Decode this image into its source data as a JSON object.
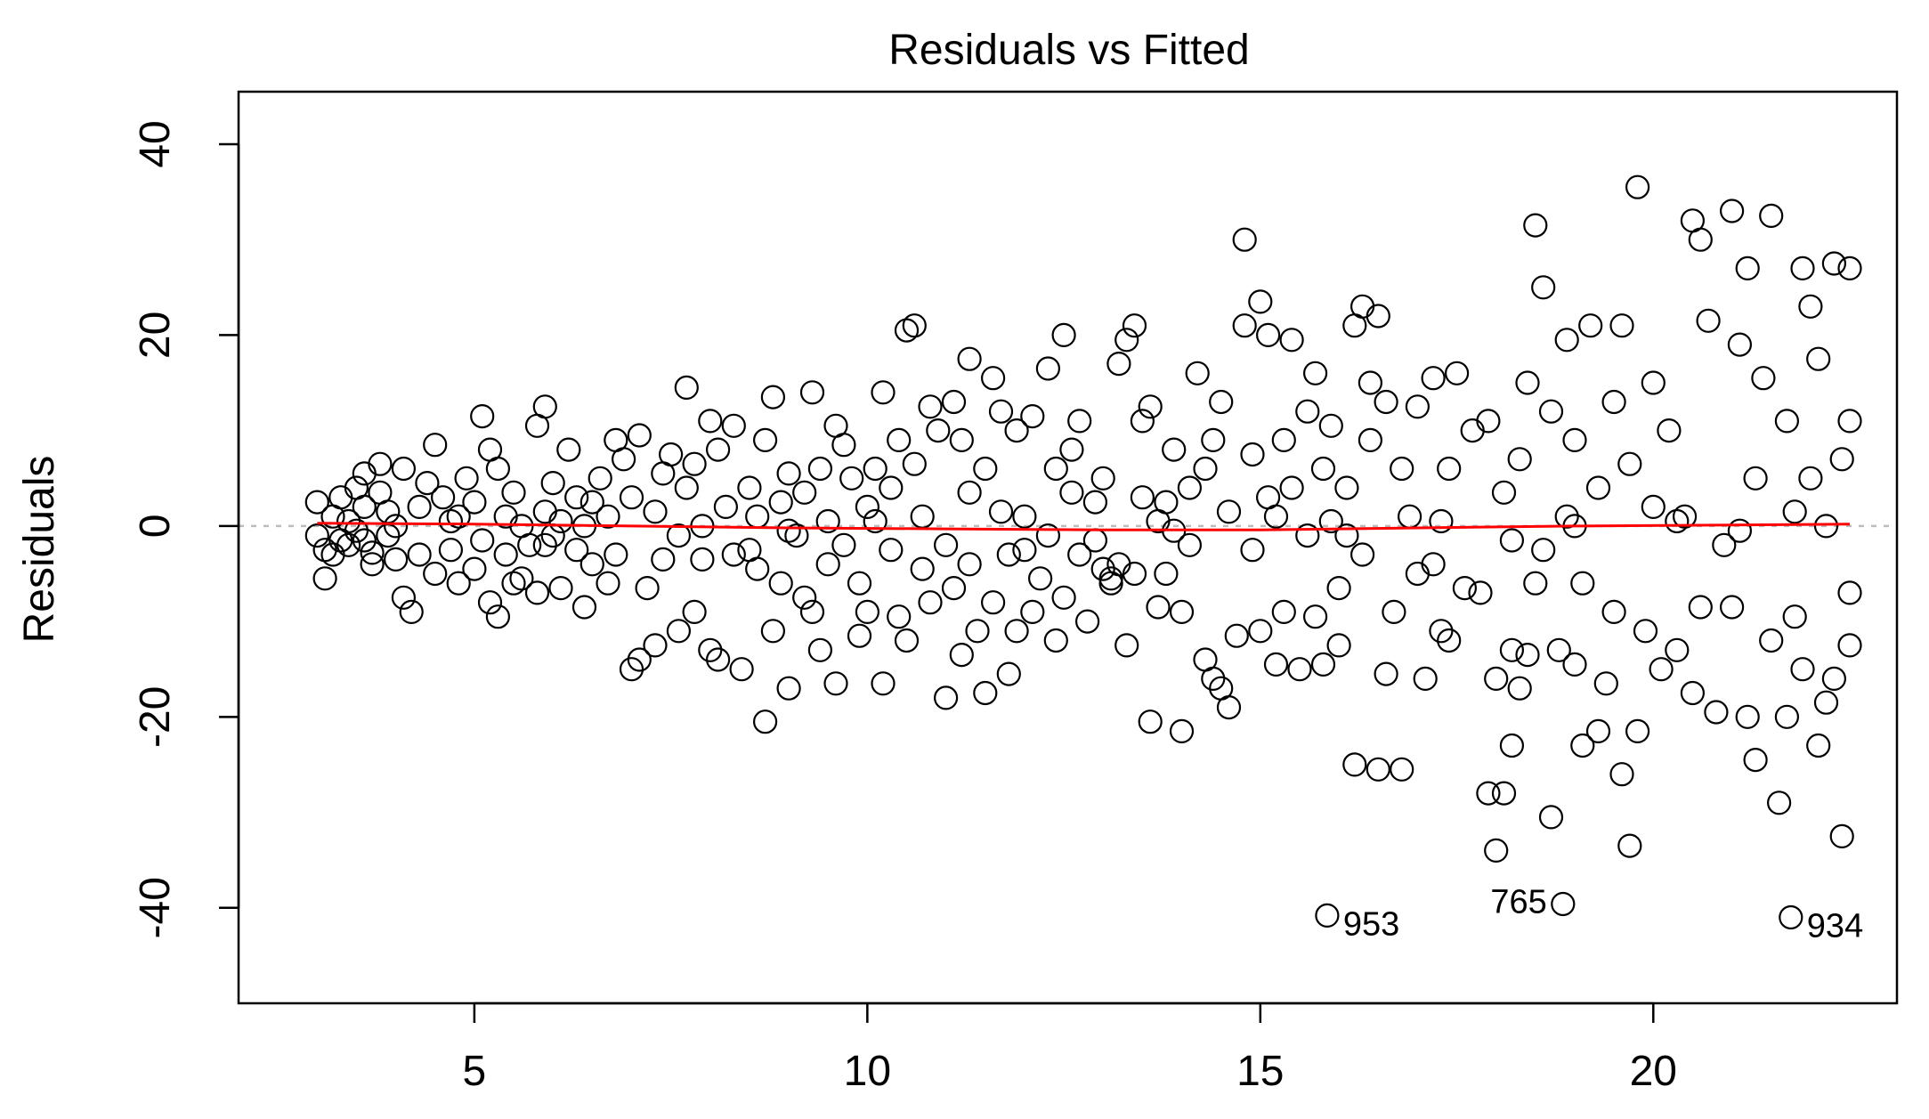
{
  "chart_data": {
    "type": "scatter",
    "title": "Residuals vs Fitted",
    "xlabel": "",
    "ylabel": "Residuals",
    "xlim": [
      2.0,
      23.1
    ],
    "ylim": [
      -50.0,
      45.5
    ],
    "x_ticks": [
      5,
      10,
      15,
      20
    ],
    "y_ticks": [
      -40,
      -20,
      0,
      20,
      40
    ],
    "grid": false,
    "colors": {
      "points": "#000000",
      "smooth": "#ff0000",
      "zero_line": "#bbbbbb"
    },
    "zero_reference": 0,
    "smooth_line": {
      "x": [
        3.0,
        5,
        7,
        9,
        11,
        13,
        15,
        17,
        19,
        21,
        22.5
      ],
      "y": [
        0.3,
        0.2,
        0.0,
        -0.2,
        -0.3,
        -0.4,
        -0.4,
        -0.2,
        0.0,
        0.1,
        0.2
      ]
    },
    "labeled_points": [
      {
        "label": "953",
        "x": 15.85,
        "y": -40.8
      },
      {
        "label": "765",
        "x": 18.85,
        "y": -39.6
      },
      {
        "label": "934",
        "x": 21.75,
        "y": -41.0
      }
    ],
    "points": [
      [
        3.0,
        2.5
      ],
      [
        3.0,
        -1.0
      ],
      [
        3.1,
        -2.5
      ],
      [
        3.1,
        -5.5
      ],
      [
        3.2,
        1.0
      ],
      [
        3.2,
        -3.0
      ],
      [
        3.3,
        3.0
      ],
      [
        3.3,
        -1.5
      ],
      [
        3.4,
        0.5
      ],
      [
        3.4,
        -2.0
      ],
      [
        3.5,
        4.0
      ],
      [
        3.5,
        -0.5
      ],
      [
        3.6,
        5.5
      ],
      [
        3.6,
        2.0
      ],
      [
        3.7,
        -4.0
      ],
      [
        3.7,
        -2.8
      ],
      [
        3.8,
        6.5
      ],
      [
        3.8,
        3.5
      ],
      [
        3.9,
        -1.0
      ],
      [
        3.9,
        1.5
      ],
      [
        4.0,
        0.0
      ],
      [
        4.0,
        -3.5
      ],
      [
        4.1,
        -7.5
      ],
      [
        4.1,
        6.0
      ],
      [
        4.2,
        -9.0
      ],
      [
        4.3,
        2.0
      ],
      [
        4.4,
        4.5
      ],
      [
        4.5,
        -5.0
      ],
      [
        4.5,
        8.5
      ],
      [
        4.6,
        3.0
      ],
      [
        4.7,
        -2.5
      ],
      [
        4.7,
        0.5
      ],
      [
        4.8,
        -6.0
      ],
      [
        4.8,
        1.0
      ],
      [
        4.9,
        5.0
      ],
      [
        5.0,
        -4.5
      ],
      [
        5.0,
        2.5
      ],
      [
        5.1,
        -1.5
      ],
      [
        5.1,
        11.5
      ],
      [
        5.2,
        8.0
      ],
      [
        5.2,
        -8.0
      ],
      [
        5.3,
        -9.5
      ],
      [
        5.3,
        6.0
      ],
      [
        5.4,
        1.0
      ],
      [
        5.4,
        -3.0
      ],
      [
        5.5,
        -6.0
      ],
      [
        5.5,
        3.5
      ],
      [
        5.6,
        -5.5
      ],
      [
        5.6,
        0.0
      ],
      [
        5.7,
        -2.0
      ],
      [
        5.8,
        10.5
      ],
      [
        5.8,
        -7.0
      ],
      [
        5.9,
        12.5
      ],
      [
        5.9,
        1.5
      ],
      [
        6.0,
        -1.0
      ],
      [
        6.0,
        4.5
      ],
      [
        6.1,
        -6.5
      ],
      [
        6.1,
        0.5
      ],
      [
        6.2,
        8.0
      ],
      [
        6.3,
        -2.5
      ],
      [
        6.3,
        3.0
      ],
      [
        6.4,
        -8.5
      ],
      [
        6.5,
        2.5
      ],
      [
        6.5,
        -4.0
      ],
      [
        6.6,
        5.0
      ],
      [
        6.7,
        -6.0
      ],
      [
        6.7,
        1.0
      ],
      [
        6.8,
        9.0
      ],
      [
        6.8,
        -3.0
      ],
      [
        6.9,
        7.0
      ],
      [
        7.0,
        -15.0
      ],
      [
        7.0,
        3.0
      ],
      [
        7.1,
        -14.0
      ],
      [
        7.1,
        9.5
      ],
      [
        7.2,
        -6.5
      ],
      [
        7.3,
        1.5
      ],
      [
        7.3,
        -12.5
      ],
      [
        7.4,
        5.5
      ],
      [
        7.4,
        -3.5
      ],
      [
        7.5,
        7.5
      ],
      [
        7.6,
        -1.0
      ],
      [
        7.6,
        -11.0
      ],
      [
        7.7,
        14.5
      ],
      [
        7.7,
        4.0
      ],
      [
        7.8,
        -9.0
      ],
      [
        7.8,
        6.5
      ],
      [
        7.9,
        0.0
      ],
      [
        8.0,
        11.0
      ],
      [
        8.0,
        -13.0
      ],
      [
        8.1,
        8.0
      ],
      [
        8.1,
        -14.0
      ],
      [
        8.2,
        2.0
      ],
      [
        8.3,
        -3.0
      ],
      [
        8.3,
        10.5
      ],
      [
        8.4,
        -15.0
      ],
      [
        8.5,
        4.0
      ],
      [
        8.5,
        -2.5
      ],
      [
        8.6,
        -4.5
      ],
      [
        8.6,
        1.0
      ],
      [
        8.7,
        9.0
      ],
      [
        8.7,
        -20.5
      ],
      [
        8.8,
        13.5
      ],
      [
        8.8,
        -11.0
      ],
      [
        8.9,
        2.5
      ],
      [
        8.9,
        -6.0
      ],
      [
        9.0,
        5.5
      ],
      [
        9.0,
        -17.0
      ],
      [
        9.1,
        -1.0
      ],
      [
        9.2,
        3.5
      ],
      [
        9.2,
        -7.5
      ],
      [
        9.3,
        14.0
      ],
      [
        9.3,
        -9.0
      ],
      [
        9.4,
        6.0
      ],
      [
        9.4,
        -13.0
      ],
      [
        9.5,
        0.5
      ],
      [
        9.5,
        -4.0
      ],
      [
        9.6,
        10.5
      ],
      [
        9.6,
        -16.5
      ],
      [
        9.7,
        8.5
      ],
      [
        9.7,
        -2.0
      ],
      [
        9.8,
        5.0
      ],
      [
        9.9,
        -11.5
      ],
      [
        9.9,
        -6.0
      ],
      [
        10.0,
        -9.0
      ],
      [
        10.0,
        2.0
      ],
      [
        10.1,
        6.0
      ],
      [
        10.2,
        -16.5
      ],
      [
        10.2,
        14.0
      ],
      [
        10.3,
        -2.5
      ],
      [
        10.3,
        4.0
      ],
      [
        10.4,
        -9.5
      ],
      [
        10.4,
        9.0
      ],
      [
        10.5,
        20.5
      ],
      [
        10.5,
        -12.0
      ],
      [
        10.6,
        21.0
      ],
      [
        10.6,
        6.5
      ],
      [
        10.7,
        -4.5
      ],
      [
        10.7,
        1.0
      ],
      [
        10.8,
        12.5
      ],
      [
        10.8,
        -8.0
      ],
      [
        10.9,
        10.0
      ],
      [
        11.0,
        -18.0
      ],
      [
        11.0,
        -2.0
      ],
      [
        11.1,
        13.0
      ],
      [
        11.1,
        -6.5
      ],
      [
        11.2,
        9.0
      ],
      [
        11.2,
        -13.5
      ],
      [
        11.3,
        17.5
      ],
      [
        11.3,
        3.5
      ],
      [
        11.4,
        -11.0
      ],
      [
        11.5,
        6.0
      ],
      [
        11.5,
        -17.5
      ],
      [
        11.6,
        15.5
      ],
      [
        11.6,
        -8.0
      ],
      [
        11.7,
        1.5
      ],
      [
        11.7,
        12.0
      ],
      [
        11.8,
        -15.5
      ],
      [
        11.8,
        -3.0
      ],
      [
        11.9,
        10.0
      ],
      [
        11.9,
        -11.0
      ],
      [
        12.0,
        1.0
      ],
      [
        12.1,
        -9.0
      ],
      [
        12.1,
        11.5
      ],
      [
        12.2,
        -5.5
      ],
      [
        12.3,
        -1.0
      ],
      [
        12.3,
        16.5
      ],
      [
        12.4,
        6.0
      ],
      [
        12.4,
        -12.0
      ],
      [
        12.5,
        20.0
      ],
      [
        12.5,
        -7.5
      ],
      [
        12.6,
        3.5
      ],
      [
        12.6,
        8.0
      ],
      [
        12.7,
        -3.0
      ],
      [
        12.7,
        11.0
      ],
      [
        12.8,
        -10.0
      ],
      [
        12.9,
        2.5
      ],
      [
        12.9,
        -1.5
      ],
      [
        13.0,
        5.0
      ],
      [
        13.0,
        -4.5
      ],
      [
        13.1,
        -5.5
      ],
      [
        13.1,
        -6.0
      ],
      [
        13.2,
        17.0
      ],
      [
        13.2,
        -4.0
      ],
      [
        13.3,
        19.5
      ],
      [
        13.3,
        -12.5
      ],
      [
        13.4,
        21.0
      ],
      [
        13.4,
        -5.0
      ],
      [
        13.5,
        11.0
      ],
      [
        13.5,
        3.0
      ],
      [
        13.6,
        -20.5
      ],
      [
        13.6,
        12.5
      ],
      [
        13.7,
        -8.5
      ],
      [
        13.7,
        0.5
      ],
      [
        13.8,
        2.5
      ],
      [
        13.8,
        -5.0
      ],
      [
        13.9,
        8.0
      ],
      [
        14.0,
        -21.5
      ],
      [
        14.0,
        -9.0
      ],
      [
        14.1,
        4.0
      ],
      [
        14.1,
        -2.0
      ],
      [
        14.2,
        16.0
      ],
      [
        14.3,
        -14.0
      ],
      [
        14.3,
        6.0
      ],
      [
        14.4,
        -16.0
      ],
      [
        14.4,
        9.0
      ],
      [
        14.5,
        -17.0
      ],
      [
        14.5,
        13.0
      ],
      [
        14.6,
        -19.0
      ],
      [
        14.6,
        1.5
      ],
      [
        14.7,
        -11.5
      ],
      [
        14.8,
        30.0
      ],
      [
        14.8,
        21.0
      ],
      [
        14.9,
        -2.5
      ],
      [
        14.9,
        7.5
      ],
      [
        15.0,
        23.5
      ],
      [
        15.0,
        -11.0
      ],
      [
        15.1,
        20.0
      ],
      [
        15.1,
        3.0
      ],
      [
        15.2,
        -14.5
      ],
      [
        15.3,
        9.0
      ],
      [
        15.3,
        -9.0
      ],
      [
        15.4,
        19.5
      ],
      [
        15.4,
        4.0
      ],
      [
        15.5,
        -15.0
      ],
      [
        15.6,
        -1.0
      ],
      [
        15.6,
        12.0
      ],
      [
        15.7,
        16.0
      ],
      [
        15.7,
        -9.5
      ],
      [
        15.8,
        6.0
      ],
      [
        15.8,
        -14.5
      ],
      [
        15.9,
        10.5
      ],
      [
        15.9,
        0.5
      ],
      [
        16.0,
        -6.5
      ],
      [
        16.0,
        -12.5
      ],
      [
        16.1,
        4.0
      ],
      [
        16.2,
        -25.0
      ],
      [
        16.2,
        21.0
      ],
      [
        16.3,
        23.0
      ],
      [
        16.3,
        -3.0
      ],
      [
        16.4,
        15.0
      ],
      [
        16.4,
        9.0
      ],
      [
        16.5,
        -25.5
      ],
      [
        16.5,
        22.0
      ],
      [
        16.6,
        -15.5
      ],
      [
        16.6,
        13.0
      ],
      [
        16.7,
        -9.0
      ],
      [
        16.8,
        -25.5
      ],
      [
        16.8,
        6.0
      ],
      [
        16.9,
        1.0
      ],
      [
        17.0,
        -5.0
      ],
      [
        17.0,
        12.5
      ],
      [
        17.1,
        -16.0
      ],
      [
        17.2,
        15.5
      ],
      [
        17.2,
        -4.0
      ],
      [
        17.3,
        -11.0
      ],
      [
        17.4,
        6.0
      ],
      [
        17.4,
        -12.0
      ],
      [
        17.5,
        16.0
      ],
      [
        17.6,
        -6.5
      ],
      [
        17.7,
        10.0
      ],
      [
        17.8,
        -7.0
      ],
      [
        17.9,
        -28.0
      ],
      [
        17.9,
        11.0
      ],
      [
        18.0,
        -34.0
      ],
      [
        18.0,
        -16.0
      ],
      [
        18.1,
        -28.0
      ],
      [
        18.1,
        3.5
      ],
      [
        18.2,
        -23.0
      ],
      [
        18.2,
        -13.0
      ],
      [
        18.3,
        -17.0
      ],
      [
        18.3,
        7.0
      ],
      [
        18.4,
        -13.5
      ],
      [
        18.4,
        15.0
      ],
      [
        18.5,
        31.5
      ],
      [
        18.5,
        -6.0
      ],
      [
        18.6,
        25.0
      ],
      [
        18.6,
        -2.5
      ],
      [
        18.7,
        -30.5
      ],
      [
        18.7,
        12.0
      ],
      [
        18.8,
        -13.0
      ],
      [
        18.9,
        19.5
      ],
      [
        18.9,
        1.0
      ],
      [
        19.0,
        -14.5
      ],
      [
        19.0,
        9.0
      ],
      [
        19.1,
        -23.0
      ],
      [
        19.1,
        -6.0
      ],
      [
        19.2,
        21.0
      ],
      [
        19.3,
        -21.5
      ],
      [
        19.3,
        4.0
      ],
      [
        19.4,
        -16.5
      ],
      [
        19.5,
        13.0
      ],
      [
        19.5,
        -9.0
      ],
      [
        19.6,
        -26.0
      ],
      [
        19.6,
        21.0
      ],
      [
        19.7,
        -33.5
      ],
      [
        19.7,
        6.5
      ],
      [
        19.8,
        35.5
      ],
      [
        19.8,
        -21.5
      ],
      [
        19.9,
        -11.0
      ],
      [
        20.0,
        2.0
      ],
      [
        20.0,
        15.0
      ],
      [
        20.1,
        -15.0
      ],
      [
        20.2,
        10.0
      ],
      [
        20.3,
        -13.0
      ],
      [
        20.4,
        1.0
      ],
      [
        20.5,
        32.0
      ],
      [
        20.5,
        -17.5
      ],
      [
        20.6,
        30.0
      ],
      [
        20.6,
        -8.5
      ],
      [
        20.7,
        21.5
      ],
      [
        20.8,
        -19.5
      ],
      [
        20.9,
        -2.0
      ],
      [
        21.0,
        33.0
      ],
      [
        21.0,
        -8.5
      ],
      [
        21.1,
        19.0
      ],
      [
        21.2,
        -20.0
      ],
      [
        21.2,
        27.0
      ],
      [
        21.3,
        -24.5
      ],
      [
        21.3,
        5.0
      ],
      [
        21.4,
        15.5
      ],
      [
        21.5,
        32.5
      ],
      [
        21.5,
        -12.0
      ],
      [
        21.6,
        -29.0
      ],
      [
        21.7,
        -20.0
      ],
      [
        21.7,
        11.0
      ],
      [
        21.8,
        -9.5
      ],
      [
        21.9,
        27.0
      ],
      [
        21.9,
        -15.0
      ],
      [
        22.0,
        23.0
      ],
      [
        22.0,
        5.0
      ],
      [
        22.1,
        -23.0
      ],
      [
        22.1,
        17.5
      ],
      [
        22.2,
        -18.5
      ],
      [
        22.2,
        0.0
      ],
      [
        22.3,
        27.5
      ],
      [
        22.3,
        -16.0
      ],
      [
        22.4,
        -32.5
      ],
      [
        22.4,
        7.0
      ],
      [
        22.5,
        27.0
      ],
      [
        22.5,
        -12.5
      ],
      [
        22.5,
        11.0
      ],
      [
        22.5,
        -7.0
      ],
      [
        3.6,
        -1.5
      ],
      [
        4.3,
        -3.0
      ],
      [
        5.9,
        -2.0
      ],
      [
        6.4,
        0.0
      ],
      [
        7.9,
        -3.5
      ],
      [
        9.0,
        -0.5
      ],
      [
        10.1,
        0.5
      ],
      [
        11.3,
        -4.0
      ],
      [
        12.0,
        -2.5
      ],
      [
        13.9,
        -0.5
      ],
      [
        15.2,
        1.0
      ],
      [
        16.1,
        -1.0
      ],
      [
        17.3,
        0.5
      ],
      [
        18.2,
        -1.5
      ],
      [
        19.0,
        0.0
      ],
      [
        20.3,
        0.5
      ],
      [
        21.1,
        -0.5
      ],
      [
        21.8,
        1.5
      ]
    ]
  }
}
